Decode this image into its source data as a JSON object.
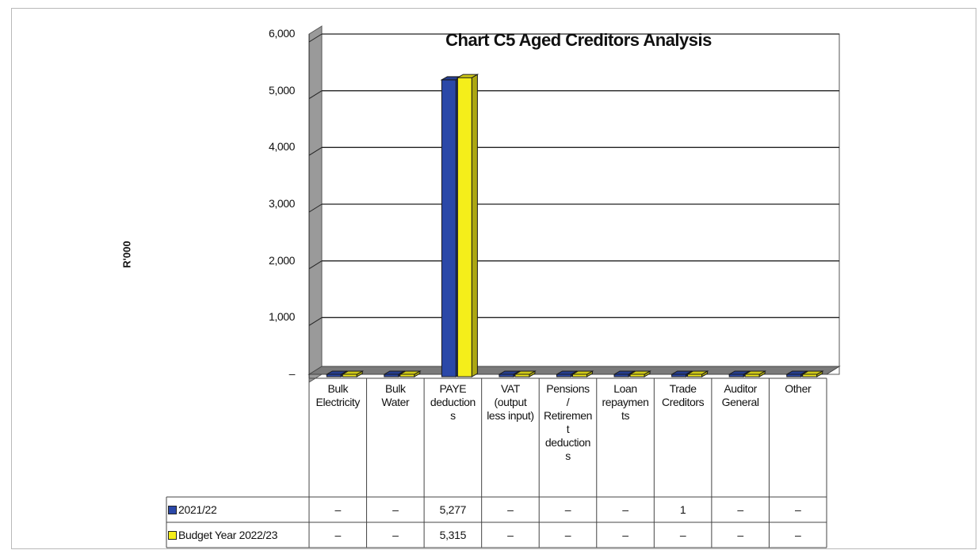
{
  "chart_data": {
    "type": "bar",
    "title": "Chart C5 Aged Creditors Analysis",
    "ylabel": "R'000",
    "xlabel": "",
    "ylim": [
      0,
      6000
    ],
    "y_ticks": [
      "6,000",
      "5,000",
      "4,000",
      "3,000",
      "2,000",
      "1,000",
      "–"
    ],
    "grid": true,
    "legend": "data table below chart",
    "categories": [
      "Bulk Electricity",
      "Bulk Water",
      "PAYE deductions",
      "VAT (output less input)",
      "Pensions / Retirement deductions",
      "Loan repayments",
      "Trade Creditors",
      "Auditor General",
      "Other"
    ],
    "category_labels": [
      "Bulk\nElectricity",
      "Bulk\nWater",
      "PAYE\ndeduction\ns",
      "VAT\n(output\nless input)",
      "Pensions\n/\nRetiremen\nt\ndeduction\ns",
      "Loan\nrepaymen\nts",
      "Trade\nCreditors",
      "Auditor\nGeneral",
      "Other"
    ],
    "series": [
      {
        "name": "2021/22",
        "color": "#2b48a8",
        "values": [
          0,
          0,
          5277,
          0,
          0,
          0,
          1,
          0,
          0
        ],
        "display": [
          "–",
          "–",
          "5,277",
          "–",
          "–",
          "–",
          "1",
          "–",
          "–"
        ]
      },
      {
        "name": "Budget Year 2022/23",
        "color": "#f5ee1a",
        "values": [
          0,
          0,
          5315,
          0,
          0,
          0,
          0,
          0,
          0
        ],
        "display": [
          "–",
          "–",
          "5,315",
          "–",
          "–",
          "–",
          "–",
          "–",
          "–"
        ]
      }
    ]
  }
}
